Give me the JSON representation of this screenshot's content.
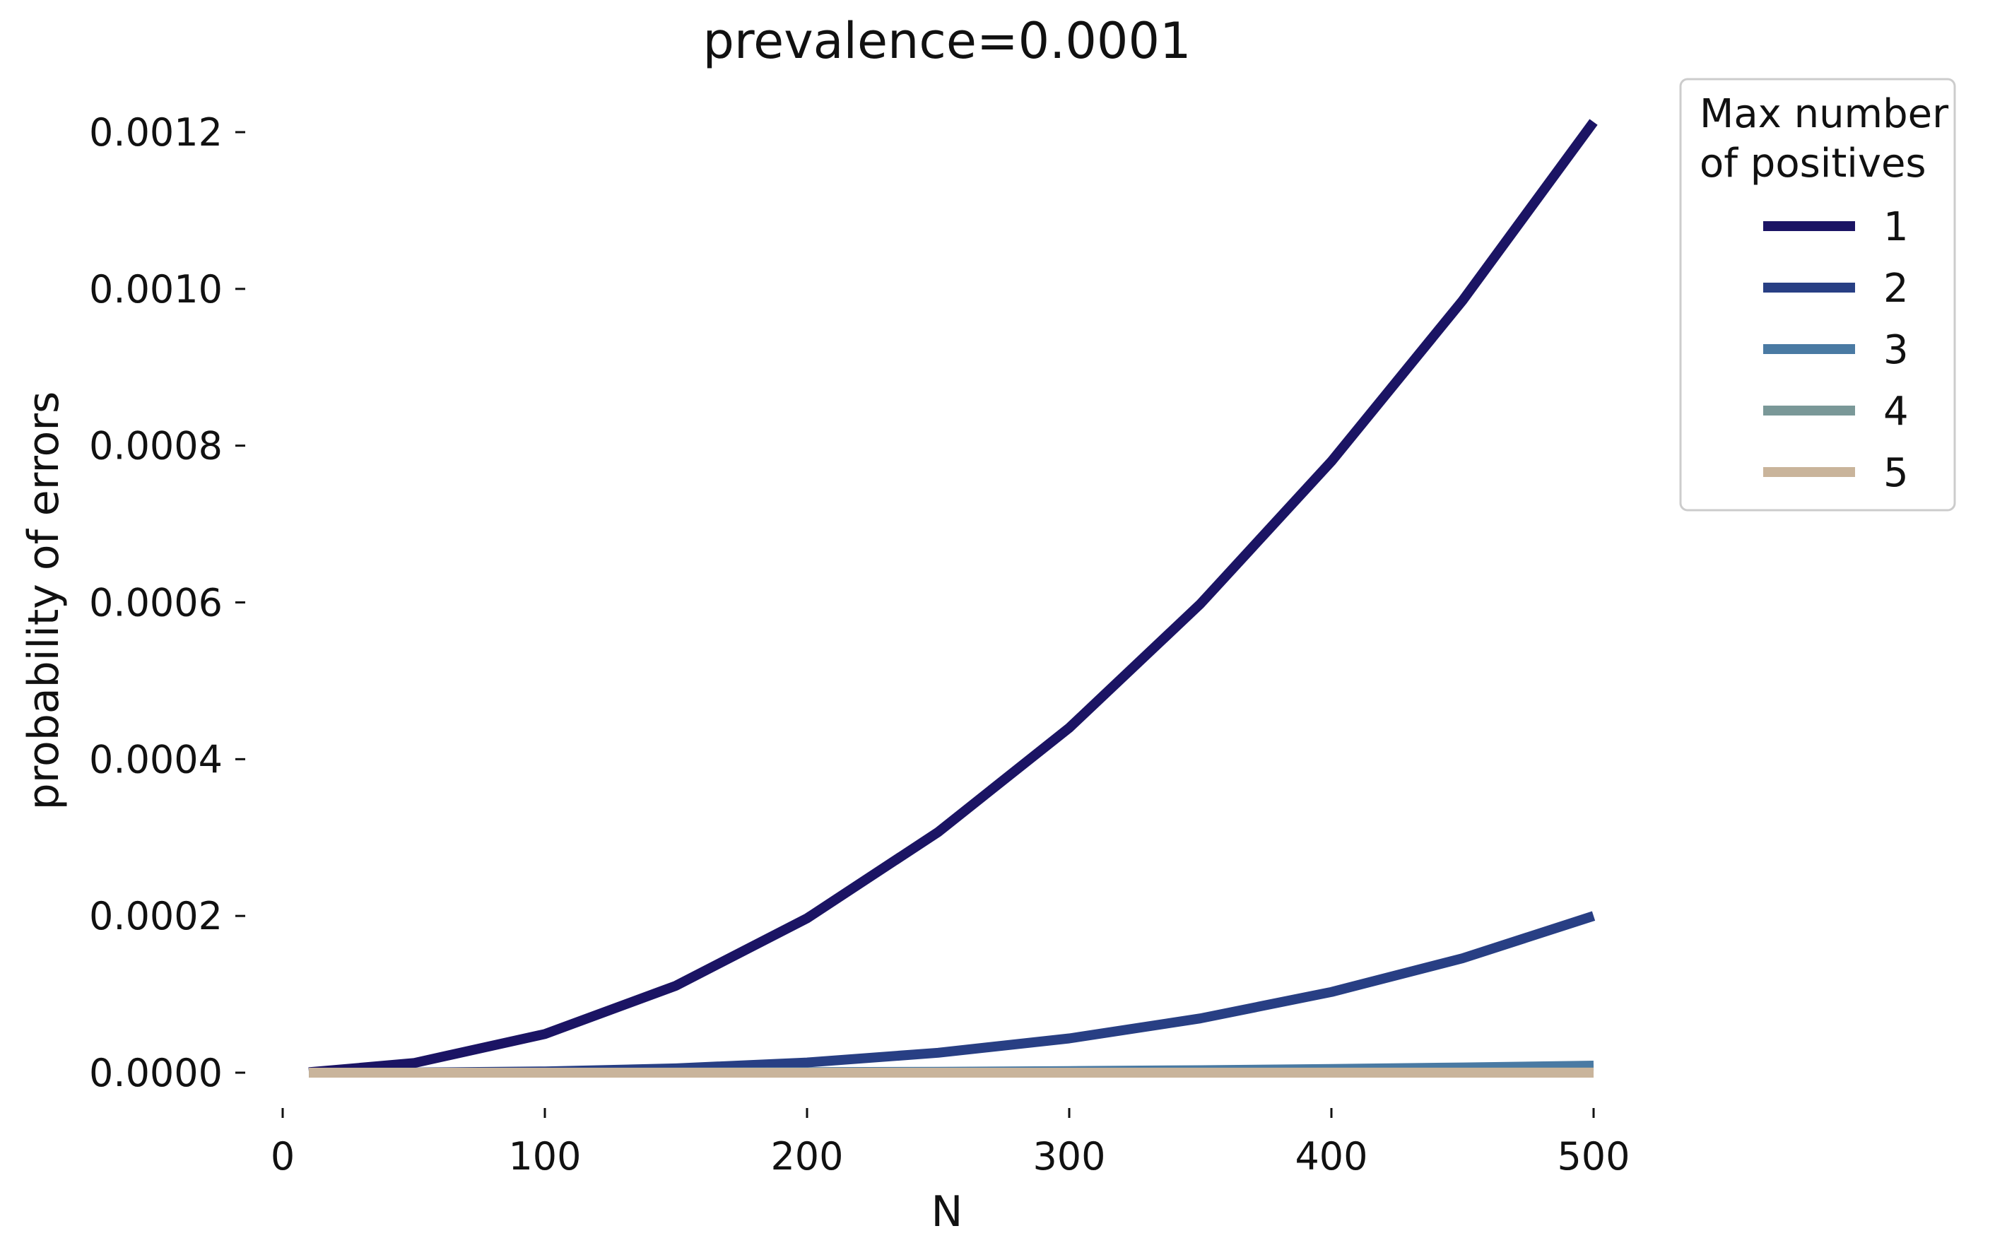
{
  "chart_data": {
    "type": "line",
    "title": "prevalence=0.0001",
    "xlabel": "N",
    "ylabel": "probability of errors",
    "xlim": [
      0,
      500
    ],
    "ylim": [
      0,
      0.0012
    ],
    "x_ticks": [
      "0",
      "100",
      "200",
      "300",
      "400",
      "500"
    ],
    "y_ticks": [
      "0.0000",
      "0.0002",
      "0.0004",
      "0.0006",
      "0.0008",
      "0.0010",
      "0.0012"
    ],
    "grid": false,
    "legend": {
      "title_line1": "Max number",
      "title_line2": "of positives",
      "placement": "outside-top-right"
    },
    "x": [
      10,
      50,
      100,
      150,
      200,
      250,
      300,
      350,
      400,
      450,
      500
    ],
    "series": [
      {
        "name": "1",
        "color": "#1b1464",
        "values": [
          5e-07,
          1.23e-05,
          4.93e-05,
          0.000111,
          0.000197,
          0.000307,
          0.00044,
          0.000598,
          0.00078,
          0.000985,
          0.001213
        ]
      },
      {
        "name": "2",
        "color": "#283f84",
        "values": [
          0.0,
          2e-07,
          1.6e-06,
          5.5e-06,
          1.3e-05,
          2.54e-05,
          4.37e-05,
          6.92e-05,
          0.000103,
          0.000146,
          0.0002
        ]
      },
      {
        "name": "3",
        "color": "#4a7aa3",
        "values": [
          0.0,
          0.0,
          0.0,
          2e-07,
          6e-07,
          1.2e-06,
          2.1e-06,
          3.2e-06,
          4.8e-06,
          6.7e-06,
          9e-06
        ]
      },
      {
        "name": "4",
        "color": "#7a9898",
        "values": [
          0.0,
          0.0,
          0.0,
          0.0,
          0.0,
          0.0,
          0.0,
          1e-07,
          2e-07,
          3e-07,
          4e-07
        ]
      },
      {
        "name": "5",
        "color": "#c9b49b",
        "values": [
          0.0,
          0.0,
          0.0,
          0.0,
          0.0,
          0.0,
          0.0,
          0.0,
          0.0,
          0.0,
          0.0
        ]
      }
    ]
  }
}
